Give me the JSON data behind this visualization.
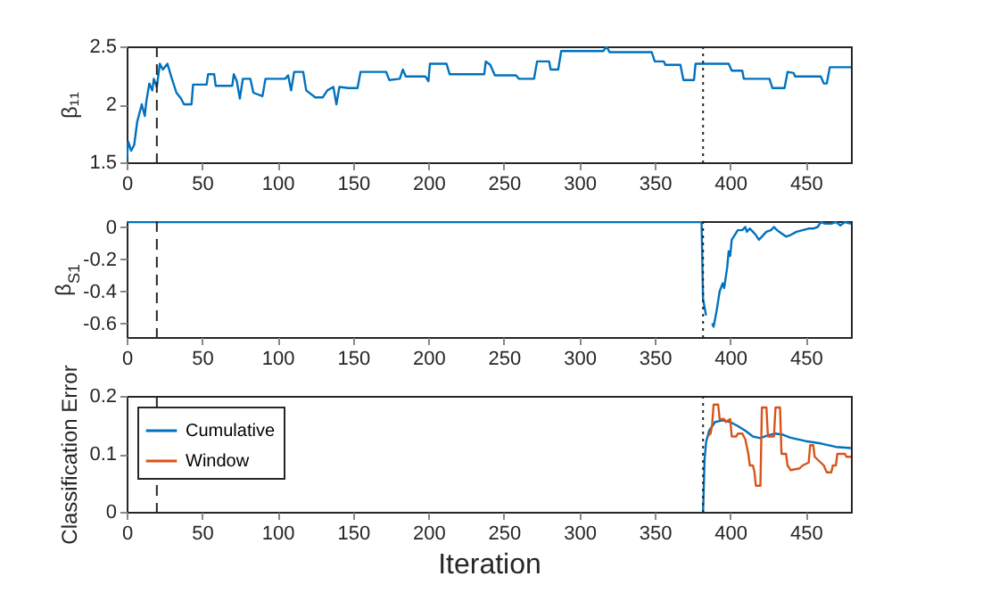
{
  "chart_data": [
    {
      "type": "line",
      "ylabel": "β₁₁",
      "xlim": [
        0,
        480
      ],
      "xticks": [
        0,
        50,
        100,
        150,
        200,
        250,
        300,
        350,
        400,
        450
      ],
      "ylim": [
        1.5,
        2.5
      ],
      "yticks": [
        1.5,
        2,
        2.5
      ],
      "series": [
        {
          "color": "#0072bd",
          "x": [
            0,
            1,
            3,
            5,
            7,
            10,
            12,
            13,
            15,
            17,
            18,
            20,
            22,
            24,
            27,
            30,
            33,
            36,
            38,
            43,
            44,
            53,
            54,
            58,
            59,
            70,
            71,
            73,
            75,
            77,
            82,
            84,
            90,
            92,
            105,
            107,
            109,
            111,
            117,
            119,
            125,
            130,
            133,
            137,
            139,
            141,
            147,
            153,
            155,
            172,
            174,
            181,
            183,
            185,
            198,
            200,
            201,
            212,
            214,
            237,
            238,
            241,
            244,
            258,
            260,
            270,
            272,
            280,
            281,
            286,
            288,
            316,
            318,
            320,
            348,
            350,
            356,
            357,
            367,
            369,
            376,
            377,
            399,
            401,
            408,
            409,
            426,
            428,
            436,
            438,
            442,
            443,
            460,
            462,
            464,
            466,
            480
          ],
          "values": [
            1.5,
            1.68,
            1.6,
            1.65,
            1.85,
            2.0,
            1.9,
            2.02,
            2.18,
            2.12,
            2.22,
            2.15,
            2.35,
            2.3,
            2.35,
            2.22,
            2.1,
            2.05,
            2.0,
            2.0,
            2.17,
            2.17,
            2.26,
            2.26,
            2.16,
            2.16,
            2.26,
            2.2,
            2.05,
            2.22,
            2.22,
            2.1,
            2.07,
            2.22,
            2.22,
            2.25,
            2.12,
            2.28,
            2.28,
            2.12,
            2.06,
            2.06,
            2.12,
            2.15,
            2.0,
            2.15,
            2.14,
            2.14,
            2.28,
            2.28,
            2.21,
            2.22,
            2.3,
            2.24,
            2.24,
            2.2,
            2.35,
            2.35,
            2.26,
            2.26,
            2.37,
            2.34,
            2.25,
            2.25,
            2.22,
            2.22,
            2.37,
            2.37,
            2.3,
            2.3,
            2.46,
            2.46,
            2.5,
            2.45,
            2.45,
            2.37,
            2.37,
            2.34,
            2.34,
            2.21,
            2.21,
            2.35,
            2.35,
            2.29,
            2.29,
            2.22,
            2.22,
            2.14,
            2.14,
            2.28,
            2.27,
            2.24,
            2.24,
            2.18,
            2.18,
            2.32,
            2.32
          ]
        }
      ],
      "ref_lines": [
        {
          "axis": "x",
          "value": 20,
          "color": "#262626",
          "line_style": "dashed"
        },
        {
          "axis": "x",
          "value": 382,
          "color": "#262626",
          "line_style": "dotted"
        }
      ]
    },
    {
      "type": "line",
      "ylabel": "β$_{S1}$",
      "xlim": [
        0,
        480
      ],
      "xticks": [
        0,
        50,
        100,
        150,
        200,
        250,
        300,
        350,
        400,
        450
      ],
      "ylim": [
        -0.684,
        0.036
      ],
      "yticks": [
        -0.6,
        -0.4,
        -0.2,
        0
      ],
      "series": [
        {
          "color": "#0072bd",
          "x": [
            0,
            381,
            382,
            384,
            385,
            387,
            388,
            389,
            390,
            391,
            393,
            395,
            396,
            398,
            399,
            400,
            401,
            403,
            405,
            408,
            410,
            411,
            413,
            415,
            417,
            419,
            421,
            424,
            427,
            429,
            431,
            434,
            437,
            440,
            444,
            448,
            452,
            455,
            458,
            460,
            463,
            467,
            470,
            473,
            476,
            480
          ],
          "values": [
            0.03,
            0.03,
            -0.45,
            -0.55,
            null,
            null,
            -0.6,
            -0.62,
            -0.57,
            -0.52,
            -0.4,
            -0.35,
            -0.38,
            -0.25,
            -0.15,
            -0.18,
            -0.08,
            -0.05,
            -0.02,
            -0.02,
            0.0,
            -0.03,
            -0.01,
            -0.03,
            -0.05,
            -0.08,
            -0.06,
            -0.03,
            -0.02,
            0.0,
            -0.02,
            -0.04,
            -0.06,
            -0.05,
            -0.03,
            -0.02,
            -0.01,
            -0.01,
            0.0,
            0.03,
            0.02,
            0.02,
            0.03,
            0.01,
            0.03,
            0.02
          ]
        }
      ],
      "ref_lines": [
        {
          "axis": "x",
          "value": 20,
          "color": "#262626",
          "line_style": "dashed"
        },
        {
          "axis": "x",
          "value": 382,
          "color": "#262626",
          "line_style": "dotted"
        }
      ]
    },
    {
      "type": "line",
      "xlabel": "Iteration",
      "ylabel": "Classification Error",
      "xlim": [
        0,
        480
      ],
      "xticks": [
        0,
        50,
        100,
        150,
        200,
        250,
        300,
        350,
        400,
        450
      ],
      "ylim": [
        0,
        0.2
      ],
      "yticks": [
        0,
        0.1,
        0.2
      ],
      "legend": "top left",
      "series": [
        {
          "name": "Cumulative",
          "color": "#0072bd",
          "x": [
            382,
            383,
            384,
            386,
            390,
            395,
            400,
            405,
            410,
            415,
            420,
            425,
            430,
            435,
            440,
            450,
            460,
            470,
            480
          ],
          "values": [
            0,
            0.09,
            0.12,
            0.14,
            0.155,
            0.158,
            0.155,
            0.148,
            0.14,
            0.13,
            0.127,
            0.132,
            0.135,
            0.133,
            0.128,
            0.122,
            0.118,
            0.112,
            0.11
          ]
        },
        {
          "name": "Window",
          "color": "#d95319",
          "x": [
            385,
            387,
            388,
            389,
            392,
            393,
            396,
            397,
            400,
            401,
            404,
            405,
            408,
            410,
            412,
            413,
            415,
            416,
            417,
            420,
            421,
            424,
            425,
            429,
            430,
            433,
            434,
            437,
            438,
            440,
            446,
            448,
            452,
            453,
            455,
            456,
            458,
            460,
            462,
            464,
            467,
            468,
            470,
            471,
            476,
            477,
            480
          ],
          "values": [
            0.13,
            0.135,
            0.15,
            0.185,
            0.185,
            0.16,
            0.16,
            0.155,
            0.16,
            0.13,
            0.13,
            0.135,
            0.135,
            0.125,
            0.1,
            0.08,
            0.08,
            0.07,
            0.045,
            0.045,
            0.18,
            0.18,
            0.13,
            0.13,
            0.18,
            0.18,
            0.1,
            0.1,
            0.08,
            0.072,
            0.075,
            0.08,
            0.085,
            0.115,
            0.115,
            0.095,
            0.09,
            0.085,
            0.08,
            0.068,
            0.068,
            0.08,
            0.08,
            0.1,
            0.1,
            0.095,
            0.095
          ]
        }
      ],
      "ref_lines": [
        {
          "axis": "x",
          "value": 20,
          "color": "#262626",
          "line_style": "dashed"
        },
        {
          "axis": "x",
          "value": 382,
          "color": "#262626",
          "line_style": "dotted"
        }
      ]
    }
  ]
}
